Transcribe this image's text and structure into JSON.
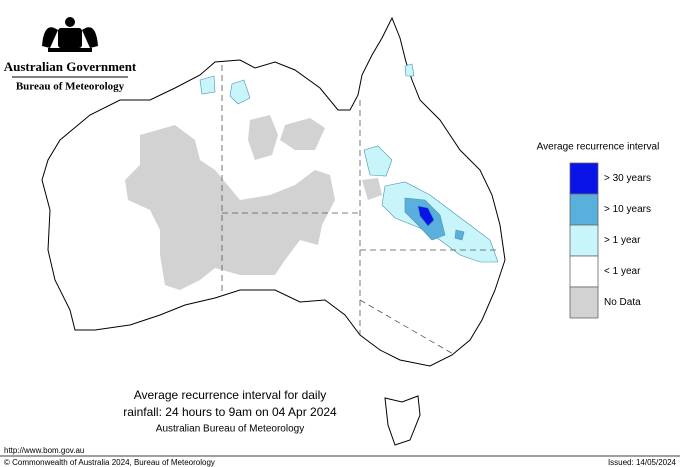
{
  "header": {
    "government": "Australian Government",
    "agency": "Bureau of Meteorology"
  },
  "legend": {
    "title": "Average recurrence interval",
    "items": [
      {
        "label": "> 30 years",
        "color": "#0a14e6"
      },
      {
        "label": "> 10 years",
        "color": "#5ab0dc"
      },
      {
        "label": "> 1 year",
        "color": "#c8f5fa"
      },
      {
        "label": "< 1 year",
        "color": "#ffffff"
      },
      {
        "label": "No Data",
        "color": "#d2d2d2"
      }
    ]
  },
  "caption": {
    "line1": "Average recurrence interval for daily",
    "line2": "rainfall: 24 hours to 9am on 04 Apr 2024",
    "line3": "Australian Bureau of Meteorology"
  },
  "footer": {
    "url": "http://www.bom.gov.au",
    "copyright": "© Commonwealth of Australia 2024, Bureau of Meteorology",
    "issued": "Issued: 14/05/2024"
  }
}
